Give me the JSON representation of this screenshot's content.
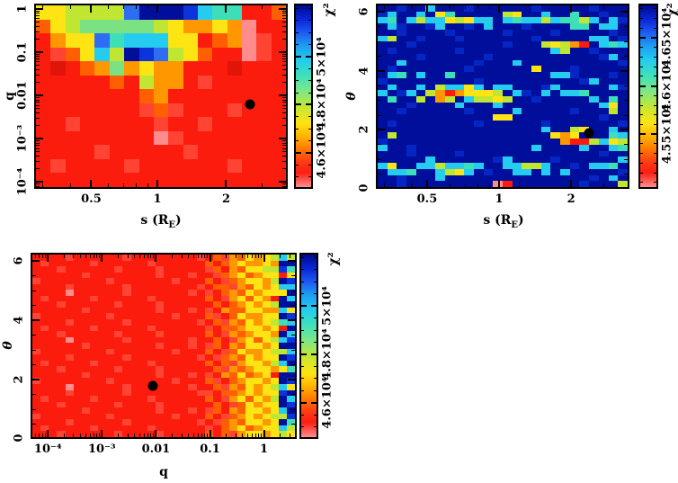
{
  "figure": {
    "background": "#ffffff",
    "description": "Three chi-squared heat maps over binary-lens parameters s, q, theta with rainbow colorbars and black best-fit markers"
  },
  "palette": {
    "p": "#ff8d8d",
    "r": "#fb1c0e",
    "s": "#ff4433",
    "d": "#df150a",
    "O": "#ff5f00",
    "o": "#ff9800",
    "y": "#ffe414",
    "g": "#c0e632",
    "G": "#7be283",
    "t": "#3cdfb8",
    "c": "#25ccf0",
    "b": "#2e6cf2",
    "B": "#0b34dd",
    "u": "#0626c4",
    "N": "#000f9b"
  },
  "colorbar_gradient": [
    {
      "c": "#00088e",
      "p": 0
    },
    {
      "c": "#0a28d8",
      "p": 8
    },
    {
      "c": "#1f5af2",
      "p": 15
    },
    {
      "c": "#1e9cf2",
      "p": 22
    },
    {
      "c": "#22ccee",
      "p": 30
    },
    {
      "c": "#3cdfc0",
      "p": 38
    },
    {
      "c": "#7ce887",
      "p": 47
    },
    {
      "c": "#c6e632",
      "p": 56
    },
    {
      "c": "#ffe414",
      "p": 65
    },
    {
      "c": "#ffb400",
      "p": 72
    },
    {
      "c": "#ff7a00",
      "p": 79
    },
    {
      "c": "#ff3c14",
      "p": 86
    },
    {
      "c": "#fb1e12",
      "p": 92
    },
    {
      "c": "#ff8d8d",
      "p": 100
    }
  ],
  "chart_data": [
    {
      "type": "heatmap",
      "name": "chi2 map in s vs q",
      "xlabel": "s (R_E)",
      "xlabel_parts": {
        "pre": "s (R",
        "sub": "E",
        "post": ")"
      },
      "ylabel": "q",
      "x_scale": "log",
      "y_scale": "log",
      "x_range": [
        0.27,
        3.9
      ],
      "y_range": [
        5e-05,
        1.3
      ],
      "x_ticks": [
        {
          "label": "0.5",
          "f": 0.225
        },
        {
          "label": "1",
          "f": 0.486
        },
        {
          "label": "2",
          "f": 0.757
        }
      ],
      "x_minor": [
        0.035,
        0.143,
        0.294,
        0.352,
        0.402,
        0.447,
        0.898
      ],
      "y_ticks": [
        {
          "label": "1",
          "f": 0.03
        },
        {
          "label": "0.1",
          "f": 0.263
        },
        {
          "label": "0.01",
          "f": 0.497
        },
        {
          "label": "10⁻³",
          "f": 0.73
        },
        {
          "label": "10⁻⁴",
          "f": 0.963
        }
      ],
      "y_minor": [
        0.041,
        0.053,
        0.066,
        0.082,
        0.1,
        0.123,
        0.152,
        0.193,
        0.274,
        0.286,
        0.299,
        0.315,
        0.333,
        0.356,
        0.385,
        0.426,
        0.508,
        0.52,
        0.533,
        0.549,
        0.567,
        0.59,
        0.619,
        0.66,
        0.741,
        0.753,
        0.766,
        0.782,
        0.8,
        0.823,
        0.852,
        0.893,
        0.974,
        0.986
      ],
      "colorbar": {
        "title": "χ²",
        "range": [
          44500,
          52200
        ],
        "ticks": [
          {
            "label": "5×10⁴",
            "f": 0.286
          },
          {
            "label": "4.8×10⁴",
            "f": 0.545
          },
          {
            "label": "4.6×10⁴",
            "f": 0.805
          }
        ],
        "minor": [
          0.026,
          0.091,
          0.156,
          0.221,
          0.351,
          0.416,
          0.481,
          0.61,
          0.675,
          0.74,
          0.87,
          0.935
        ]
      },
      "marker": {
        "x": 2.4,
        "y": 0.0065,
        "fx": 0.851,
        "fy": 0.544
      },
      "grid_rows": [
        "yyggggbNNNBcttrrO",
        "OygGGGGGgyooyoprr",
        "royybtcccyyrOopsr",
        "rsOycgNBbgyOrrpsr",
        "rdrOoGoyoorrrdrrr",
        "rrrrrOrgoorsrrrrr",
        "rrrrrrrOorrrrrrrr",
        "rrrrrrrsOsrrrsrrr",
        "rrsrrrrrsrrsrrrrr",
        "rrrrrrrrpsrrrrrrr",
        "rrrrsrrrrrsrrrrrr",
        "rsrrrrsrrrrrrsrrr",
        "rrrrrrrrrrrrrrrrr"
      ]
    },
    {
      "type": "heatmap",
      "name": "chi2 map in s vs theta",
      "xlabel": "s (R_E)",
      "xlabel_parts": {
        "pre": "s (R",
        "sub": "E",
        "post": ")"
      },
      "ylabel": "θ",
      "x_scale": "log",
      "y_scale": "linear",
      "x_range": [
        0.27,
        3.9
      ],
      "y_range": [
        0,
        6.28
      ],
      "x_ticks": [
        {
          "label": "0.5",
          "f": 0.202
        },
        {
          "label": "1",
          "f": 0.486
        },
        {
          "label": "2",
          "f": 0.77
        }
      ],
      "x_minor": [
        0.035,
        0.143,
        0.294,
        0.352,
        0.402,
        0.447,
        0.898
      ],
      "y_ticks": [
        {
          "label": "6",
          "f": 0.045
        },
        {
          "label": "4",
          "f": 0.363
        },
        {
          "label": "2",
          "f": 0.682
        },
        {
          "label": "0",
          "f": 0.997
        }
      ],
      "y_minor": [
        0.124,
        0.204,
        0.283,
        0.443,
        0.522,
        0.602,
        0.761,
        0.841,
        0.92
      ],
      "colorbar": {
        "title": "χ²",
        "range": [
          44940,
          46860
        ],
        "ticks": [
          {
            "label": "4.65×10⁴",
            "f": 0.185
          },
          {
            "label": "4.6×10⁴",
            "f": 0.445
          },
          {
            "label": "4.55×10⁴",
            "f": 0.705
          }
        ],
        "minor": [
          0.029,
          0.081,
          0.133,
          0.237,
          0.289,
          0.341,
          0.393,
          0.497,
          0.549,
          0.601,
          0.653,
          0.757,
          0.809,
          0.861,
          0.913,
          0.965
        ]
      },
      "marker": {
        "x": 2.4,
        "y": 1.85,
        "fx": 0.84,
        "fy": 0.699
      },
      "grid_rows": [
        "NNuNNcNNNuNNNNNNuNNNNNuNNN",
        "ucNNcNytNNNNNgyNNcNNtNNuNN",
        "ctNcgccygyccNctccgcttgcNcu",
        "NcuNNucNNuNcNNNuNNNNttNccN",
        "NNuNNNNuNNNNNuNNNNuNNNNNuN",
        "cgNNuNNNuNNNNNNNuNNNNNccNu",
        "NNNuNNNNNNNNNuNNNgygorNctc",
        "NuNNNNNNuNNNNNNNNNcgNNuNNN",
        "NNNNuNNNNNNuNNNNNNNNNNNucN",
        "NNcNNNNNNNuNNNcNNNNNNNNNNu",
        "NuNNNNNNNuNNNNNNyNNNuNNNNN",
        "NctNcNNtNNNNNNNNNNccuNNNuN",
        "uNNNNNNNNNuNNNNNNNNNNucNNN",
        "NcNNcNgccycNccNNNucNNNNNcu",
        "cNucNgoroyyygNcuNcNcctNNNN",
        "NtNNgNogNcggygNNuNNNNNcNtN",
        "NNNuNNNNcNNNcNNNNNNNNNNcyN",
        "NNuNNNNNNuNNNNcNNNNNuNNNgN",
        "NNNNNNNNNNNNyyNNNNNNNNNuNN",
        "NuNNNNNNNNuNNNNNNuNNNNNNNu",
        "NNNNNNNNNNNNNNNNNcNNgyNNcN",
        "NgNNNNNNNNNNNNNNNNyoyNNNtc",
        "uNNNNNNNNNNNNNNNNNNorrgcyg",
        "cNNuNNNNNNNNNNNNcNNNNcNNct",
        "NNNuNNNNuNNNNNNNNNNNNNNuNN",
        "NNNNNcNNNNNNucNNNNuNNNNNNc",
        "cyNNccgcctcNNccggcNNuNcctN",
        "NcctNNcgycNuNNccNcNcNNNNNu",
        "NNuNNNcNNNNNNNNNNNNNNNuNcN",
        "NNuNNNNNNNNNprNNNNNNNuNNNg"
      ]
    },
    {
      "type": "heatmap",
      "name": "chi2 map in q vs theta",
      "xlabel": "q",
      "xlabel_parts": {
        "pre": "q",
        "sub": "",
        "post": ""
      },
      "ylabel": "θ",
      "x_scale": "log",
      "y_scale": "linear",
      "x_range": [
        5e-05,
        1.5
      ],
      "y_range": [
        0,
        6.28
      ],
      "x_ticks": [
        {
          "label": "10⁻⁴",
          "f": 0.065
        },
        {
          "label": "10⁻³",
          "f": 0.268
        },
        {
          "label": "0.01",
          "f": 0.471
        },
        {
          "label": "0.1",
          "f": 0.674
        },
        {
          "label": "1",
          "f": 0.877
        }
      ],
      "x_minor": [
        0.02,
        0.033,
        0.045,
        0.056,
        0.126,
        0.162,
        0.187,
        0.207,
        0.223,
        0.237,
        0.248,
        0.259,
        0.329,
        0.365,
        0.39,
        0.41,
        0.426,
        0.44,
        0.451,
        0.462,
        0.532,
        0.568,
        0.593,
        0.613,
        0.629,
        0.643,
        0.654,
        0.665,
        0.735,
        0.771,
        0.796,
        0.816,
        0.832,
        0.846,
        0.857,
        0.868,
        0.938,
        0.974
      ],
      "y_ticks": [
        {
          "label": "6",
          "f": 0.045
        },
        {
          "label": "4",
          "f": 0.363
        },
        {
          "label": "2",
          "f": 0.682
        },
        {
          "label": "0",
          "f": 0.997
        }
      ],
      "y_minor": [
        0.124,
        0.204,
        0.283,
        0.443,
        0.522,
        0.602,
        0.761,
        0.841,
        0.92
      ],
      "colorbar": {
        "title": "χ²",
        "range": [
          44500,
          52200
        ],
        "ticks": [
          {
            "label": "5×10⁴",
            "f": 0.286
          },
          {
            "label": "4.8×10⁴",
            "f": 0.545
          },
          {
            "label": "4.6×10⁴",
            "f": 0.805
          }
        ],
        "minor": [
          0.026,
          0.091,
          0.156,
          0.221,
          0.351,
          0.416,
          0.481,
          0.61,
          0.675,
          0.74,
          0.87,
          0.935
        ]
      },
      "marker": {
        "x": 0.009,
        "y": 1.85,
        "fx": 0.459,
        "fy": 0.713
      },
      "grid_rows": [
        "rrrrsrrrrrrsrrrrrrrrsrOsoOyoygcg",
        "rsrrrrrsrrrrrrsrrrrrrOrOoyooyoNN",
        "rrrsrrrrrrsrrrrsrrrrrsOroOyyggBt",
        "rrrrrrsrrrrrrrrsrrrsrrsOoyOoyyry",
        "srrrrrrrrsrrrrrrrsrrrOrsOoyyogNB",
        "rrrrsrrrrrrsrrrrrrrrsrOOsoOyoycc",
        "rrrrprrrrrrsrrrrrrrsrsrOoOyoyyyN",
        "rsrrrrrsrrrrrrsrrrrrrOrsoyOyorNc",
        "rrrsrrrrrrsrrrrsrrrrrrOrOoyoygNN",
        "rrrrrrsrrrrrrrrsrrrsrsroOOyyoocy",
        "srrrrrrrrsrrrrrrrsrrrOsrOyooyyNB",
        "rrrrsrrrrrrsrrrrrrrrsrOsoOyoygtc",
        "rsrrrrrsrrrrrrsrrrrrrsrOOoyyoyrN",
        "rrrsrrrrrrsrrrrsrrrrrOrsoOoyyoNc",
        "rrrrprrrrrrsrrrrrrrsrrOrsoyOygcB",
        "rrrrrrsrrrrrrrrsrrrsrsOroOyyoyNN",
        "srrrrrrrrsrrrrrrrsrrrOrsOyooyggc",
        "rrrrsrrrrrrsrrrrrrrrsrsOoOyoyyNB",
        "rsrrrrrsrrrrrrsrrrrrrOrOsoyyogcN",
        "rrrsrrrrrrsrrrrsrrrrrrOsoOoyyoyt",
        "rrrrrrsrrrrrrrrsrrrsrsroOyOoyrNN",
        "srrrrrrrrsrrrrrrrsrrrOsrOoyyoyNB",
        "rrrrprrrrrrsrrrrrrrsrrOsoOyoygcy",
        "rrrrsrrrrrrsrrrrrrrrssrOOoyoyyBN",
        "rsrrrrrsrrrrrrsrrrrrrOrsoyOyogNc",
        "rrrsrrrrrrsrrrrsrrrrrrOrsOyoyyNB",
        "rrrrrrsrrrrrrrrsrrrsrsOroOyyoycN",
        "srrrrrrrrsrrrrrrrsrrrOrsOoyoyggB",
        "rrrrsrrrrrrsrrrrrrrrsrsOoOyyoyNt",
        "rsrrrrrsrrrrrrsrrrrrrsrOoyOoyycg",
        "rrrsrrrrrrsrrrrsrrrrrOrOsoyyoygy"
      ]
    }
  ]
}
